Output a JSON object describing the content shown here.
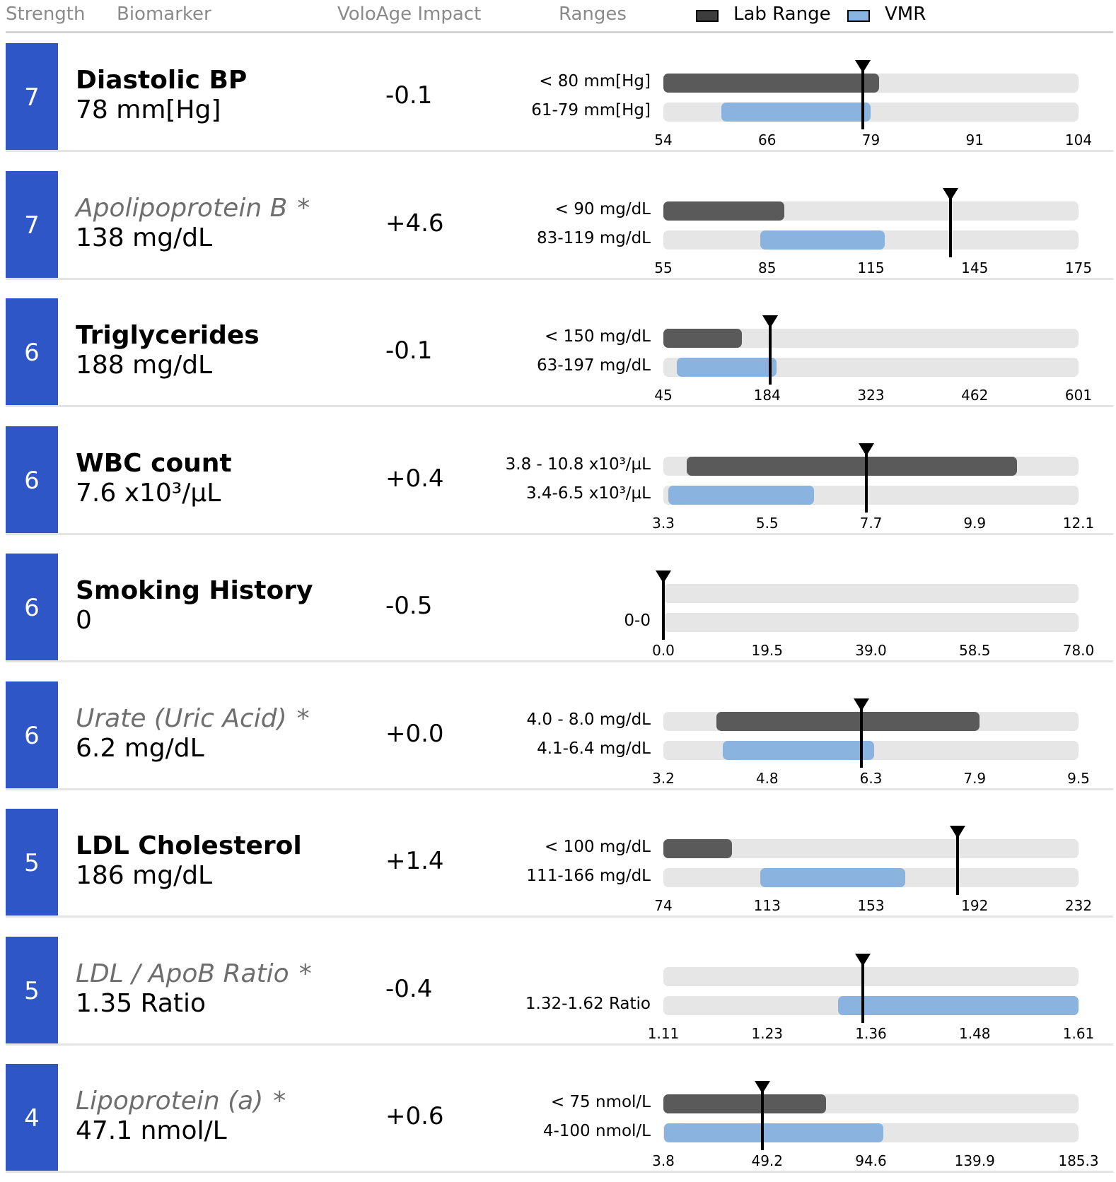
{
  "header": {
    "strength": "Strength",
    "biomarker": "Biomarker",
    "impact": "VoloAge Impact",
    "ranges": "Ranges",
    "legend_lab": "Lab Range",
    "legend_vmr": "VMR"
  },
  "colors": {
    "badge": "#2e56c7",
    "lab_fill": "#5a5a5a",
    "vmr_fill": "#8bb3df",
    "track": "#e6e6e6",
    "legend_lab_swatch": "#3d3d3d",
    "legend_vmr_swatch": "#8bb3df"
  },
  "rows": [
    {
      "strength": "7",
      "name": "Diastolic BP",
      "star": "",
      "italic": false,
      "value": "78 mm[Hg]",
      "impact": "-0.1",
      "lab_label": "< 80 mm[Hg]",
      "vmr_label": "61-79 mm[Hg]",
      "ticks": [
        "54",
        "66",
        "79",
        "91",
        "104"
      ]
    },
    {
      "strength": "7",
      "name": "Apolipoprotein B",
      "star": "*",
      "italic": true,
      "value": "138 mg/dL",
      "impact": "+4.6",
      "lab_label": "< 90 mg/dL",
      "vmr_label": "83-119 mg/dL",
      "ticks": [
        "55",
        "85",
        "115",
        "145",
        "175"
      ]
    },
    {
      "strength": "6",
      "name": "Triglycerides",
      "star": "",
      "italic": false,
      "value": "188 mg/dL",
      "impact": "-0.1",
      "lab_label": "< 150 mg/dL",
      "vmr_label": "63-197 mg/dL",
      "ticks": [
        "45",
        "184",
        "323",
        "462",
        "601"
      ]
    },
    {
      "strength": "6",
      "name": "WBC count",
      "star": "",
      "italic": false,
      "value": "7.6 x10³/µL",
      "impact": "+0.4",
      "lab_label": "3.8 - 10.8 x10³/µL",
      "vmr_label": "3.4-6.5 x10³/µL",
      "ticks": [
        "3.3",
        "5.5",
        "7.7",
        "9.9",
        "12.1"
      ]
    },
    {
      "strength": "6",
      "name": "Smoking History",
      "star": "",
      "italic": false,
      "value": "0",
      "impact": "-0.5",
      "lab_label": "",
      "vmr_label": "0-0",
      "ticks": [
        "0.0",
        "19.5",
        "39.0",
        "58.5",
        "78.0"
      ]
    },
    {
      "strength": "6",
      "name": "Urate (Uric Acid)",
      "star": "*",
      "italic": true,
      "value": "6.2 mg/dL",
      "impact": "+0.0",
      "lab_label": "4.0 - 8.0 mg/dL",
      "vmr_label": "4.1-6.4 mg/dL",
      "ticks": [
        "3.2",
        "4.8",
        "6.3",
        "7.9",
        "9.5"
      ]
    },
    {
      "strength": "5",
      "name": "LDL Cholesterol",
      "star": "",
      "italic": false,
      "value": "186 mg/dL",
      "impact": "+1.4",
      "lab_label": "< 100 mg/dL",
      "vmr_label": "111-166 mg/dL",
      "ticks": [
        "74",
        "113",
        "153",
        "192",
        "232"
      ]
    },
    {
      "strength": "5",
      "name": "LDL / ApoB Ratio",
      "star": "*",
      "italic": true,
      "value": "1.35 Ratio",
      "impact": "-0.4",
      "lab_label": "",
      "vmr_label": "1.32-1.62 Ratio",
      "ticks": [
        "1.11",
        "1.23",
        "1.36",
        "1.48",
        "1.61"
      ]
    },
    {
      "strength": "4",
      "name": "Lipoprotein (a)",
      "star": "*",
      "italic": true,
      "value": "47.1 nmol/L",
      "impact": "+0.6",
      "lab_label": "< 75 nmol/L",
      "vmr_label": "4-100 nmol/L",
      "ticks": [
        "3.8",
        "49.2",
        "94.6",
        "139.9",
        "185.3"
      ]
    }
  ],
  "chart_data": {
    "type": "bar",
    "categories": [
      "Diastolic BP",
      "Apolipoprotein B",
      "Triglycerides",
      "WBC count",
      "Smoking History",
      "Urate (Uric Acid)",
      "LDL Cholesterol",
      "LDL / ApoB Ratio",
      "Lipoprotein (a)"
    ],
    "series": [
      {
        "name": "Lab Range",
        "ranges": [
          [
            54,
            80
          ],
          [
            55,
            90
          ],
          [
            45,
            150
          ],
          [
            3.8,
            10.8
          ],
          null,
          [
            4.0,
            8.0
          ],
          [
            74,
            100
          ],
          null,
          [
            3.8,
            75
          ]
        ]
      },
      {
        "name": "VMR",
        "ranges": [
          [
            61,
            79
          ],
          [
            83,
            119
          ],
          [
            63,
            197
          ],
          [
            3.4,
            6.5
          ],
          [
            0,
            0
          ],
          [
            4.1,
            6.4
          ],
          [
            111,
            166
          ],
          [
            1.32,
            1.62
          ],
          [
            4,
            100
          ]
        ]
      }
    ],
    "measured": [
      78,
      138,
      188,
      7.6,
      0,
      6.2,
      186,
      1.35,
      47.1
    ],
    "axes": [
      [
        54,
        104
      ],
      [
        55,
        175
      ],
      [
        45,
        601
      ],
      [
        3.3,
        12.1
      ],
      [
        0,
        78
      ],
      [
        3.2,
        9.5
      ],
      [
        74,
        232
      ],
      [
        1.11,
        1.61
      ],
      [
        3.8,
        185.3
      ]
    ],
    "legend": "top-right"
  }
}
